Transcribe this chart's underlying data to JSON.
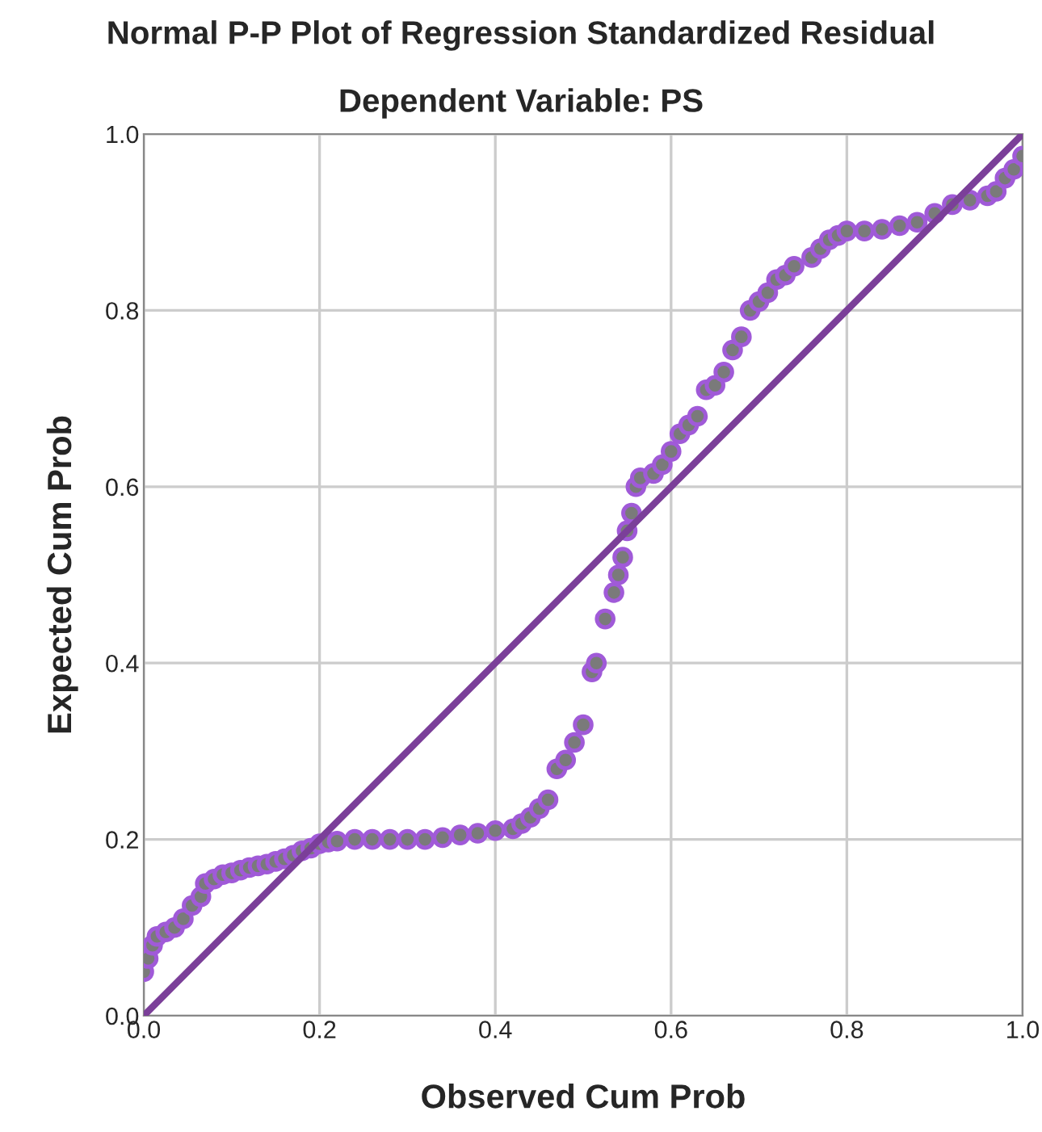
{
  "chart_data": {
    "type": "scatter",
    "title": "Normal P-P Plot of Regression Standardized Residual",
    "subtitle": "Dependent Variable: PS",
    "xlabel": "Observed Cum Prob",
    "ylabel": "Expected Cum Prob",
    "xlim": [
      0,
      1
    ],
    "ylim": [
      0,
      1
    ],
    "xticks": [
      {
        "value": 0,
        "label": "0.0"
      },
      {
        "value": 0.2,
        "label": "0.2"
      },
      {
        "value": 0.4,
        "label": "0.4"
      },
      {
        "value": 0.6,
        "label": "0.6"
      },
      {
        "value": 0.8,
        "label": "0.8"
      },
      {
        "value": 1,
        "label": "1.0"
      }
    ],
    "yticks": [
      {
        "value": 0,
        "label": "0.0"
      },
      {
        "value": 0.2,
        "label": "0.2"
      },
      {
        "value": 0.4,
        "label": "0.4"
      },
      {
        "value": 0.6,
        "label": "0.6"
      },
      {
        "value": 0.8,
        "label": "0.8"
      },
      {
        "value": 1,
        "label": "1.0"
      }
    ],
    "grid": true,
    "series": [
      {
        "marker": "circle",
        "color": "#a05ad8",
        "x": [
          0.0,
          0.005,
          0.01,
          0.015,
          0.025,
          0.035,
          0.045,
          0.055,
          0.065,
          0.07,
          0.08,
          0.09,
          0.1,
          0.11,
          0.12,
          0.13,
          0.14,
          0.15,
          0.16,
          0.17,
          0.18,
          0.19,
          0.2,
          0.21,
          0.22,
          0.24,
          0.26,
          0.28,
          0.3,
          0.32,
          0.34,
          0.36,
          0.38,
          0.4,
          0.42,
          0.43,
          0.44,
          0.45,
          0.46,
          0.47,
          0.48,
          0.49,
          0.5,
          0.51,
          0.515,
          0.525,
          0.535,
          0.54,
          0.545,
          0.55,
          0.555,
          0.56,
          0.565,
          0.58,
          0.59,
          0.6,
          0.61,
          0.62,
          0.63,
          0.64,
          0.65,
          0.66,
          0.67,
          0.68,
          0.69,
          0.7,
          0.71,
          0.72,
          0.73,
          0.74,
          0.76,
          0.77,
          0.78,
          0.79,
          0.8,
          0.82,
          0.84,
          0.86,
          0.88,
          0.9,
          0.92,
          0.94,
          0.96,
          0.97,
          0.98,
          0.99,
          1.0
        ],
        "values": [
          0.05,
          0.065,
          0.08,
          0.09,
          0.095,
          0.1,
          0.11,
          0.125,
          0.135,
          0.15,
          0.155,
          0.16,
          0.162,
          0.165,
          0.168,
          0.17,
          0.172,
          0.175,
          0.178,
          0.182,
          0.187,
          0.19,
          0.195,
          0.197,
          0.198,
          0.2,
          0.2,
          0.2,
          0.2,
          0.2,
          0.202,
          0.205,
          0.207,
          0.21,
          0.212,
          0.218,
          0.225,
          0.235,
          0.245,
          0.28,
          0.29,
          0.31,
          0.33,
          0.39,
          0.4,
          0.45,
          0.48,
          0.5,
          0.52,
          0.55,
          0.57,
          0.6,
          0.61,
          0.615,
          0.625,
          0.64,
          0.66,
          0.67,
          0.68,
          0.71,
          0.715,
          0.73,
          0.755,
          0.77,
          0.8,
          0.81,
          0.82,
          0.835,
          0.84,
          0.85,
          0.86,
          0.87,
          0.88,
          0.885,
          0.89,
          0.89,
          0.892,
          0.896,
          0.9,
          0.91,
          0.92,
          0.925,
          0.93,
          0.935,
          0.95,
          0.96,
          0.975
        ]
      },
      {
        "type": "line",
        "color": "#7b3f99",
        "x": [
          0,
          1
        ],
        "values": [
          0,
          1
        ]
      }
    ]
  }
}
